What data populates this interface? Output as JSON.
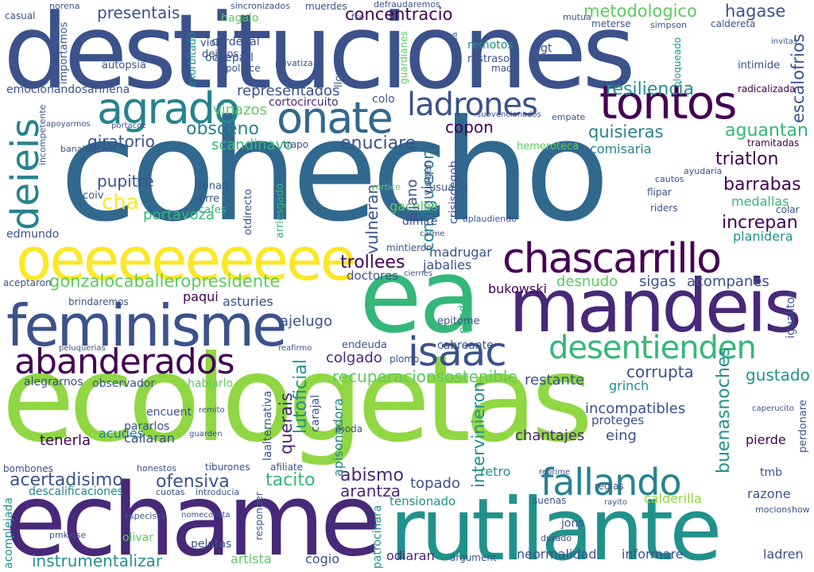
{
  "colors": {
    "background": "#ffffff",
    "palette": [
      "#440154",
      "#482878",
      "#3b528b",
      "#31688e",
      "#26828e",
      "#21918c",
      "#35b779",
      "#5ec962",
      "#90d743",
      "#fde725"
    ]
  },
  "words": {
    "cohecho": "cohecho",
    "destituciones": "destituciones",
    "ecologetas": "ecologetas",
    "echame": "echame",
    "rutilante": "rutilante",
    "ea": "ea",
    "mandeis": "mandeis",
    "feminisme": "feminisme",
    "oeeeeeeeee": "oeeeeeeeee",
    "chascarrillo": "chascarrillo",
    "tontos": "tontos",
    "onate": "onate",
    "agrado": "agrado",
    "ladrones": "ladrones",
    "abanderados": "abanderados",
    "isaac": "isaac",
    "desentienden": "desentienden",
    "fallando": "fallando",
    "deieis": "deieis",
    "gonzalocaballeropresidente": "gonzalocaballeropresidente",
    "concentracio": "concentracio",
    "metodologico": "metodologico",
    "hagase": "hagase",
    "presentais": "presentais",
    "escalofrios": "escalofrios",
    "resiliencia": "resiliencia",
    "querais": "querais",
    "lutoficial": "lutoficial",
    "recuperacionsostenible": "recuperacionsostenible",
    "instrumentalizar": "instrumentalizar",
    "acertadisimo": "acertadisimo",
    "ofensiva": "ofensiva",
    "tacito": "tacito",
    "abismo": "abismo",
    "arantza": "arantza",
    "intervinieron": "intervinieron",
    "buenasnoches": "buenasnoches",
    "gustado": "gustado",
    "triatlon": "triatlon",
    "barrabas": "barrabas",
    "increpan": "increpan",
    "quisieras": "quisieras",
    "aguantan": "aguantan",
    "comisaria": "comisaria",
    "enuciare": "enuciare",
    "copon": "copon",
    "obsceno": "obsceno",
    "scandinavo": "scandinavo",
    "giratorio": "giratorio",
    "pupitre": "pupitre",
    "cha": "cha",
    "portavoza": "portavoza",
    "vinazos": "vinazos",
    "representados": "representados",
    "cortocircuito": "cortocircuito",
    "colo": "colo",
    "trollees": "trollees",
    "jabalies": "jabalies",
    "madrugar": "madrugar",
    "doctores": "doctores",
    "desnudo": "desnudo",
    "sigas": "sigas",
    "acompanes": "acompanes",
    "bukowski": "bukowski",
    "corrupta": "corrupta",
    "colgado": "colgado",
    "ajelugo": "ajelugo",
    "asturies": "asturies",
    "paqui": "paqui",
    "restante": "restante",
    "grinch": "grinch",
    "incompatibles": "incompatibles",
    "proteges": "proteges",
    "chantajes": "chantajes",
    "eing": "eing",
    "pierde": "pierde",
    "tenerla": "tenerla",
    "acudes": "acudes",
    "callaran": "callaran",
    "pararlos": "pararlos",
    "encuent": "encuent",
    "topado": "topado",
    "retro": "retro",
    "razone": "razone",
    "calderilla": "calderilla",
    "tensionado": "tensionado",
    "pedazo": "pedazo",
    "neormalidad": "neormalidad",
    "informare": "informare",
    "ladren": "ladren",
    "odiaran": "odiaran",
    "artista": "artista",
    "cogio": "cogio",
    "olivar": "olivar",
    "pelotas": "pelotas",
    "acomplejada": "acomplejada",
    "descalificaciones": "descalificaciones",
    "tmb": "tmb",
    "mocionshow": "mocionshow",
    "medallas": "medallas",
    "planidera": "planidera",
    "colar": "colar",
    "vulneran": "vulneran",
    "consiguieron": "consiguieron",
    "gacelas": "gacelas",
    "dimite": "dimite",
    "iejano": "iejano",
    "crisisdegob": "crisisdegob",
    "mintieron": "mintieron",
    "viola": "viola",
    "dejalos": "dejalos",
    "hagalo": "hagalo",
    "cardenal": "cardenal",
    "ocdeparl": "ocdeparl",
    "autopsia": "autopsia",
    "remotos": "remotos",
    "restraso": "restraso",
    "intimide": "intimide",
    "edmundo": "edmundo",
    "apisonadora": "apisonadora",
    "hablarlo": "hablarlo",
    "observador": "observador",
    "alegrarnos": "alegrarnos",
    "endeuda": "endeuda",
    "cabreante": "cabreante",
    "epitome": "epitome",
    "laalternativa": "laalternativa",
    "carajal": "carajal",
    "moda": "moda",
    "afiliate": "afiliate",
    "tiburones": "tiburones",
    "emocionandosarinena": "emocionandosarinena",
    "importamos": "importamos",
    "presentais_small": "presentais",
    "casual": "casual",
    "norena": "norena",
    "muerdes": "muerdes",
    "defraudaremos": "defraudaremos",
    "sincronizados": "sincronizados",
    "fse": "fse",
    "mutua": "mutua",
    "caldereta": "caldereta",
    "metermas": "meterse",
    "simpson": "simpson",
    "radicalizada": "radicalizada",
    "tramitadas": "tramitadas",
    "hemeroteca": "hemeroteca",
    "empate": "empate",
    "vertice": "vertice",
    "usuario": "usuario",
    "viogen": "viogen",
    "arriesgado": "arriesgado",
    "otdirecto": "otdirecto",
    "sonad": "sonad",
    "erre": "erre",
    "cafes": "cafes",
    "coiv": "coiv",
    "acomplejadas": "aplaudiendo",
    "riders": "riders",
    "flipar": "flipar",
    "cautos": "cautos",
    "ayudaria": "ayudaria",
    "pirado": "pirado",
    "igualitos": "igualitos",
    "acceptaron": "aceptaron",
    "brindaremos": "brindaremos",
    "peluquerias": "peluquerias",
    "reafirmo": "reafirmo",
    "remito": "remito",
    "guarden": "guarden",
    "bombones": "bombones",
    "honestos": "honestos",
    "reprime": "reprime",
    "reglas": "reglas",
    "suenas": "suenas",
    "jons": "jons",
    "durado": "durado",
    "patrocinara": "patrocinara",
    "argument": "argument",
    "responder": "responder",
    "esperaria": "especista",
    "pmklose": "pmklose",
    "introducia": "introducia",
    "cuotas": "cuotas",
    "nomeconsta": "nomeconsta",
    "perdonare": "perdonare",
    "caperucito": "caperucito",
    "rayito": "rayito",
    "alto": "alto",
    "bloqueado": "bloqueado",
    "exorbitado": "exorbitado",
    "politice": "politice",
    "privatiza": "privatiza",
    "llorado": "llorado",
    "guardianes": "guardianes",
    "subvencionados": "subvencionados",
    "banalizacion": "banalizacion",
    "incompetente": "incompetente",
    "depositada": "depositada",
    "maca": "maca",
    "gt": "gt",
    "corrupta2": "mecanica",
    "invitas": "invitas",
    "tapo": "trapo",
    "portacoz": "portacoz",
    "apoyarmos": "apoyarmos",
    "carme": "carme",
    "ciernes": "ciernes",
    "plomo": "plomo",
    "apaga": "apaga"
  }
}
